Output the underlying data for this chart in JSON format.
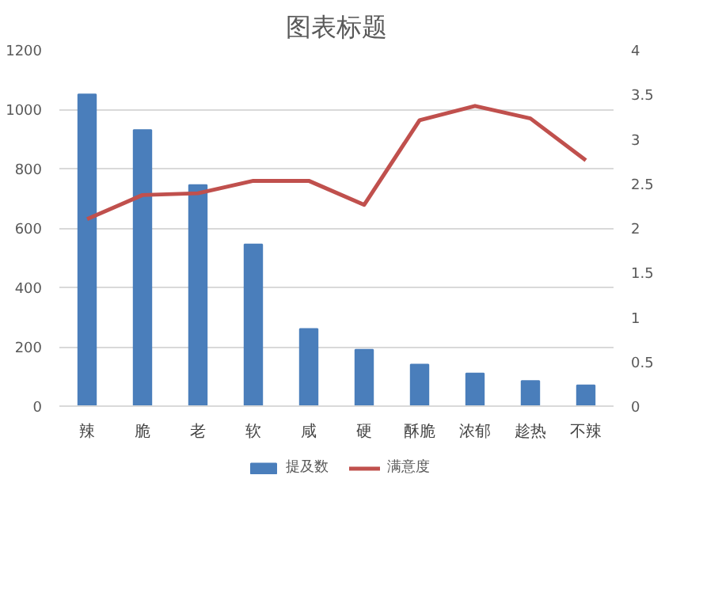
{
  "chart_data": {
    "type": "bar",
    "title": "图表标题",
    "categories": [
      "辣",
      "脆",
      "老",
      "软",
      "咸",
      "硬",
      "酥脆",
      "浓郁",
      "趁热",
      "不辣"
    ],
    "series": [
      {
        "name": "提及数",
        "color": "#4a7ebb",
        "values": [
          1050,
          930,
          745,
          545,
          260,
          190,
          140,
          110,
          85,
          70
        ]
      },
      {
        "name": "满意度",
        "type": "line",
        "axis": "y2",
        "color": "#c0504d",
        "values": [
          2.1,
          2.37,
          2.39,
          2.53,
          2.53,
          2.26,
          3.21,
          3.37,
          3.23,
          2.76
        ]
      }
    ],
    "ylim": [
      0,
      1200
    ],
    "yticks": [
      0,
      200,
      400,
      600,
      800,
      1000,
      1200
    ],
    "y2lim": [
      0,
      4
    ],
    "y2ticks": [
      0,
      {
        "value": 0.5,
        "label": "0.5"
      },
      1,
      {
        "value": 1.5,
        "label": "1.5"
      },
      2,
      {
        "value": 2.5,
        "label": "2.5"
      },
      3,
      {
        "value": 3.5,
        "label": "3.5"
      },
      4
    ],
    "grid": "y",
    "legend": "bottom"
  }
}
